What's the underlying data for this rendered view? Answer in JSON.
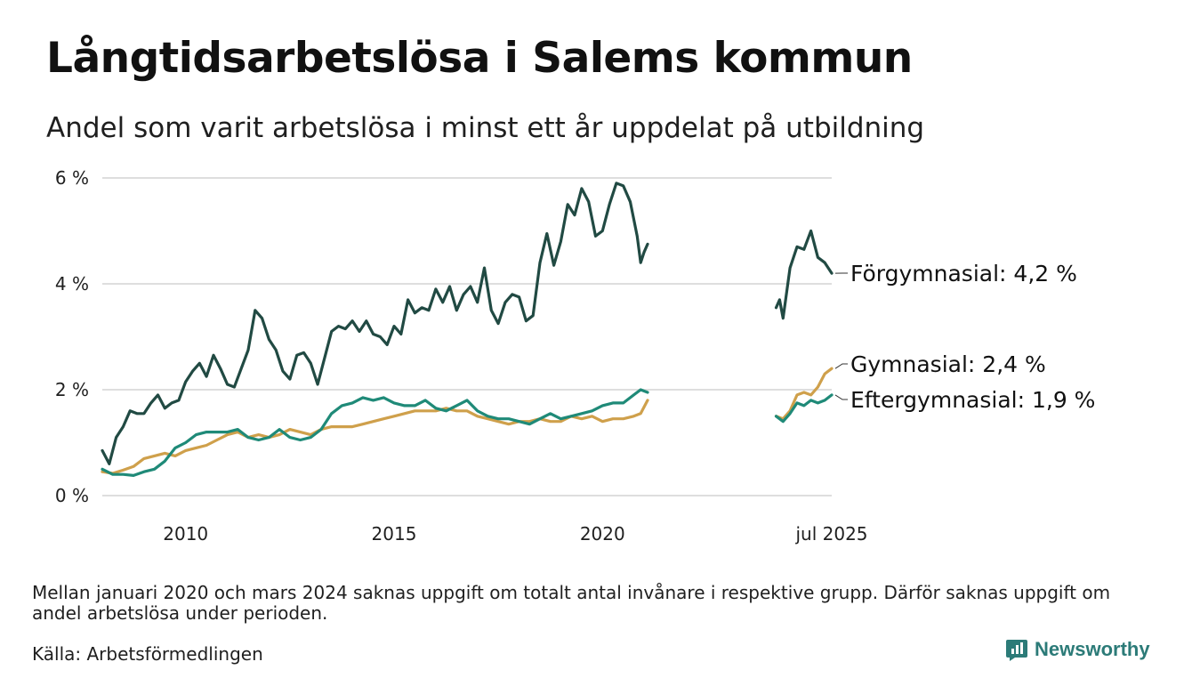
{
  "title": "Långtidsarbetslösa i Salems kommun",
  "subtitle": "Andel som varit arbetslösa i minst ett år uppdelat på utbildning",
  "note": "Mellan januari 2020 och mars 2024 saknas uppgift om totalt antal invånare i respektive grupp. Därför saknas uppgift om andel arbetslösa under perioden.",
  "source": "Källa: Arbetsförmedlingen",
  "brand": {
    "name": "Newsworthy",
    "icon": "chart-logo-icon",
    "color": "#2c7b78"
  },
  "chart_data": {
    "type": "line",
    "ylim": [
      0,
      6
    ],
    "xlim": [
      "2008-01",
      "2025-07"
    ],
    "yticks": [
      0,
      2,
      4,
      6
    ],
    "ytick_labels": [
      "0 %",
      "2 %",
      "4 %",
      "6 %"
    ],
    "xticks": [
      "2010-01",
      "2015-01",
      "2020-01",
      "2025-07"
    ],
    "xtick_labels": [
      "2010",
      "2015",
      "2020",
      "jul 2025"
    ],
    "grid": true,
    "gap": [
      "2021-02",
      "2024-02"
    ],
    "series": [
      {
        "name": "Förgymnasial",
        "end_label": "Förgymnasial: 4,2 %",
        "color": "#214a43",
        "points": [
          [
            "2008-01",
            0.85
          ],
          [
            "2008-03",
            0.6
          ],
          [
            "2008-05",
            1.1
          ],
          [
            "2008-07",
            1.3
          ],
          [
            "2008-09",
            1.6
          ],
          [
            "2008-11",
            1.55
          ],
          [
            "2009-01",
            1.55
          ],
          [
            "2009-03",
            1.75
          ],
          [
            "2009-05",
            1.9
          ],
          [
            "2009-07",
            1.65
          ],
          [
            "2009-09",
            1.75
          ],
          [
            "2009-11",
            1.8
          ],
          [
            "2010-01",
            2.15
          ],
          [
            "2010-03",
            2.35
          ],
          [
            "2010-05",
            2.5
          ],
          [
            "2010-07",
            2.25
          ],
          [
            "2010-09",
            2.65
          ],
          [
            "2010-11",
            2.4
          ],
          [
            "2011-01",
            2.1
          ],
          [
            "2011-03",
            2.05
          ],
          [
            "2011-05",
            2.4
          ],
          [
            "2011-07",
            2.75
          ],
          [
            "2011-09",
            3.5
          ],
          [
            "2011-11",
            3.35
          ],
          [
            "2012-01",
            2.95
          ],
          [
            "2012-03",
            2.75
          ],
          [
            "2012-05",
            2.35
          ],
          [
            "2012-07",
            2.2
          ],
          [
            "2012-09",
            2.65
          ],
          [
            "2012-11",
            2.7
          ],
          [
            "2013-01",
            2.5
          ],
          [
            "2013-03",
            2.1
          ],
          [
            "2013-05",
            2.6
          ],
          [
            "2013-07",
            3.1
          ],
          [
            "2013-09",
            3.2
          ],
          [
            "2013-11",
            3.15
          ],
          [
            "2014-01",
            3.3
          ],
          [
            "2014-03",
            3.1
          ],
          [
            "2014-05",
            3.3
          ],
          [
            "2014-07",
            3.05
          ],
          [
            "2014-09",
            3.0
          ],
          [
            "2014-11",
            2.85
          ],
          [
            "2015-01",
            3.2
          ],
          [
            "2015-03",
            3.05
          ],
          [
            "2015-05",
            3.7
          ],
          [
            "2015-07",
            3.45
          ],
          [
            "2015-09",
            3.55
          ],
          [
            "2015-11",
            3.5
          ],
          [
            "2016-01",
            3.9
          ],
          [
            "2016-03",
            3.65
          ],
          [
            "2016-05",
            3.95
          ],
          [
            "2016-07",
            3.5
          ],
          [
            "2016-09",
            3.8
          ],
          [
            "2016-11",
            3.95
          ],
          [
            "2017-01",
            3.65
          ],
          [
            "2017-03",
            4.3
          ],
          [
            "2017-05",
            3.5
          ],
          [
            "2017-07",
            3.25
          ],
          [
            "2017-09",
            3.65
          ],
          [
            "2017-11",
            3.8
          ],
          [
            "2018-01",
            3.75
          ],
          [
            "2018-03",
            3.3
          ],
          [
            "2018-05",
            3.4
          ],
          [
            "2018-07",
            4.4
          ],
          [
            "2018-09",
            4.95
          ],
          [
            "2018-11",
            4.35
          ],
          [
            "2019-01",
            4.8
          ],
          [
            "2019-03",
            5.5
          ],
          [
            "2019-05",
            5.3
          ],
          [
            "2019-07",
            5.8
          ],
          [
            "2019-09",
            5.55
          ],
          [
            "2019-11",
            4.9
          ],
          [
            "2020-01",
            5.0
          ],
          [
            "2020-03",
            5.5
          ],
          [
            "2020-05",
            5.9
          ],
          [
            "2020-07",
            5.85
          ],
          [
            "2020-09",
            5.55
          ],
          [
            "2020-11",
            4.9
          ],
          [
            "2020-12",
            4.4
          ],
          [
            "2021-01",
            4.6
          ],
          [
            "2021-02",
            4.75
          ],
          [
            "2024-03",
            3.55
          ],
          [
            "2024-04",
            3.7
          ],
          [
            "2024-05",
            3.35
          ],
          [
            "2024-07",
            4.3
          ],
          [
            "2024-09",
            4.7
          ],
          [
            "2024-11",
            4.65
          ],
          [
            "2025-01",
            5.0
          ],
          [
            "2025-03",
            4.5
          ],
          [
            "2025-05",
            4.4
          ],
          [
            "2025-07",
            4.2
          ]
        ]
      },
      {
        "name": "Gymnasial",
        "end_label": "Gymnasial: 2,4 %",
        "color": "#cfa04b",
        "points": [
          [
            "2008-01",
            0.45
          ],
          [
            "2008-04",
            0.42
          ],
          [
            "2008-07",
            0.48
          ],
          [
            "2008-10",
            0.55
          ],
          [
            "2009-01",
            0.7
          ],
          [
            "2009-04",
            0.75
          ],
          [
            "2009-07",
            0.8
          ],
          [
            "2009-10",
            0.75
          ],
          [
            "2010-01",
            0.85
          ],
          [
            "2010-04",
            0.9
          ],
          [
            "2010-07",
            0.95
          ],
          [
            "2010-10",
            1.05
          ],
          [
            "2011-01",
            1.15
          ],
          [
            "2011-04",
            1.2
          ],
          [
            "2011-07",
            1.1
          ],
          [
            "2011-10",
            1.15
          ],
          [
            "2012-01",
            1.1
          ],
          [
            "2012-04",
            1.15
          ],
          [
            "2012-07",
            1.25
          ],
          [
            "2012-10",
            1.2
          ],
          [
            "2013-01",
            1.15
          ],
          [
            "2013-04",
            1.25
          ],
          [
            "2013-07",
            1.3
          ],
          [
            "2013-10",
            1.3
          ],
          [
            "2014-01",
            1.3
          ],
          [
            "2014-04",
            1.35
          ],
          [
            "2014-07",
            1.4
          ],
          [
            "2014-10",
            1.45
          ],
          [
            "2015-01",
            1.5
          ],
          [
            "2015-04",
            1.55
          ],
          [
            "2015-07",
            1.6
          ],
          [
            "2015-10",
            1.6
          ],
          [
            "2016-01",
            1.6
          ],
          [
            "2016-04",
            1.65
          ],
          [
            "2016-07",
            1.6
          ],
          [
            "2016-10",
            1.6
          ],
          [
            "2017-01",
            1.5
          ],
          [
            "2017-04",
            1.45
          ],
          [
            "2017-07",
            1.4
          ],
          [
            "2017-10",
            1.35
          ],
          [
            "2018-01",
            1.4
          ],
          [
            "2018-04",
            1.4
          ],
          [
            "2018-07",
            1.45
          ],
          [
            "2018-10",
            1.4
          ],
          [
            "2019-01",
            1.4
          ],
          [
            "2019-04",
            1.5
          ],
          [
            "2019-07",
            1.45
          ],
          [
            "2019-10",
            1.5
          ],
          [
            "2020-01",
            1.4
          ],
          [
            "2020-04",
            1.45
          ],
          [
            "2020-07",
            1.45
          ],
          [
            "2020-10",
            1.5
          ],
          [
            "2020-12",
            1.55
          ],
          [
            "2021-02",
            1.8
          ],
          [
            "2024-03",
            1.5
          ],
          [
            "2024-05",
            1.45
          ],
          [
            "2024-07",
            1.6
          ],
          [
            "2024-09",
            1.9
          ],
          [
            "2024-11",
            1.95
          ],
          [
            "2025-01",
            1.9
          ],
          [
            "2025-03",
            2.05
          ],
          [
            "2025-05",
            2.3
          ],
          [
            "2025-07",
            2.4
          ]
        ]
      },
      {
        "name": "Eftergymnasial",
        "end_label": "Eftergymnasial: 1,9 %",
        "color": "#1f8a78",
        "points": [
          [
            "2008-01",
            0.5
          ],
          [
            "2008-04",
            0.4
          ],
          [
            "2008-07",
            0.4
          ],
          [
            "2008-10",
            0.38
          ],
          [
            "2009-01",
            0.45
          ],
          [
            "2009-04",
            0.5
          ],
          [
            "2009-07",
            0.65
          ],
          [
            "2009-10",
            0.9
          ],
          [
            "2010-01",
            1.0
          ],
          [
            "2010-04",
            1.15
          ],
          [
            "2010-07",
            1.2
          ],
          [
            "2010-10",
            1.2
          ],
          [
            "2011-01",
            1.2
          ],
          [
            "2011-04",
            1.25
          ],
          [
            "2011-07",
            1.1
          ],
          [
            "2011-10",
            1.05
          ],
          [
            "2012-01",
            1.1
          ],
          [
            "2012-04",
            1.25
          ],
          [
            "2012-07",
            1.1
          ],
          [
            "2012-10",
            1.05
          ],
          [
            "2013-01",
            1.1
          ],
          [
            "2013-04",
            1.25
          ],
          [
            "2013-07",
            1.55
          ],
          [
            "2013-10",
            1.7
          ],
          [
            "2014-01",
            1.75
          ],
          [
            "2014-04",
            1.85
          ],
          [
            "2014-07",
            1.8
          ],
          [
            "2014-10",
            1.85
          ],
          [
            "2015-01",
            1.75
          ],
          [
            "2015-04",
            1.7
          ],
          [
            "2015-07",
            1.7
          ],
          [
            "2015-10",
            1.8
          ],
          [
            "2016-01",
            1.65
          ],
          [
            "2016-04",
            1.6
          ],
          [
            "2016-07",
            1.7
          ],
          [
            "2016-10",
            1.8
          ],
          [
            "2017-01",
            1.6
          ],
          [
            "2017-04",
            1.5
          ],
          [
            "2017-07",
            1.45
          ],
          [
            "2017-10",
            1.45
          ],
          [
            "2018-01",
            1.4
          ],
          [
            "2018-04",
            1.35
          ],
          [
            "2018-07",
            1.45
          ],
          [
            "2018-10",
            1.55
          ],
          [
            "2019-01",
            1.45
          ],
          [
            "2019-04",
            1.5
          ],
          [
            "2019-07",
            1.55
          ],
          [
            "2019-10",
            1.6
          ],
          [
            "2020-01",
            1.7
          ],
          [
            "2020-04",
            1.75
          ],
          [
            "2020-07",
            1.75
          ],
          [
            "2020-10",
            1.9
          ],
          [
            "2020-12",
            2.0
          ],
          [
            "2021-02",
            1.95
          ],
          [
            "2024-03",
            1.5
          ],
          [
            "2024-05",
            1.4
          ],
          [
            "2024-07",
            1.55
          ],
          [
            "2024-09",
            1.75
          ],
          [
            "2024-11",
            1.7
          ],
          [
            "2025-01",
            1.8
          ],
          [
            "2025-03",
            1.75
          ],
          [
            "2025-05",
            1.8
          ],
          [
            "2025-07",
            1.9
          ]
        ]
      }
    ]
  }
}
